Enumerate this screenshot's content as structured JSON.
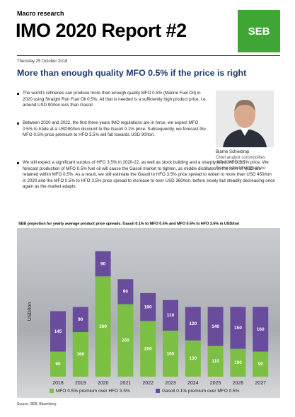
{
  "header": {
    "section": "Macro research",
    "title": "IMO 2020 Report #2",
    "logo": "SEB",
    "date": "Thursday 25 October 2018"
  },
  "headline": "More than enough quality MFO 0.5% if the price is right",
  "bullets": [
    "The world's refineries can produce more than enough quality MFO 0.5% (Marine Fuel Oil) in 2020 using Straight Run Fuel Oil 0.5%. All that is needed is a sufficiently high product price, i.e. around USD 90/ton less than Gasoil.",
    "Between 2020 and 2022, the first three years IMO regulations are in force, we expect MFO 0.5% to trade at a USD90/ton discount to the Gasoil 0.1% price. Subsequently, we forecast the MFO 0.5% price premium to HFO 3.5% will fall towards USD 90/ton.",
    "We still expect a significant surplus of HFO 3.5% in 2020-22, as well as stock building and a sharply lower HFO 3.5% price. We forecast production of MFO 0.5% fuel oil will cause the Gasoil market to tighten, as middle distillates in the form of VGO are retained within MFO 0.5%. As a result, we still estimate the Gasoil to HFO 3.5% price spread to widen to more than USD 450/ton in 2020 and the MFO 0.5% to HFO 3.5% price spread to increase to over USD 360/ton, before slowly but steadily decreasing once again as the market adapts."
  ],
  "contact": {
    "name": "Bjarne Schieldrop",
    "role": "Chief analyst commodities",
    "phone": "(47) 9248 9230",
    "email": "Bjarne.schieldrop@seb.no"
  },
  "chart_data": {
    "type": "stacked_bar",
    "title": "SEB projection for yearly average product price spreads. Gasoil 0.1% to MFO 0.5% and MFO 0.5% to HFO 3.5% in USD/ton",
    "y_label": "USD/ton",
    "categories": [
      "2018",
      "2019",
      "2020",
      "2021",
      "2022",
      "2023",
      "2024",
      "2025",
      "2026",
      "2027"
    ],
    "series": [
      {
        "name": "MFO 0.5% premium over HFO 3.5%",
        "color": "#7cc043",
        "values": [
          90,
          160,
          360,
          260,
          200,
          165,
          130,
          110,
          100,
          90
        ]
      },
      {
        "name": "Gasoil 0.1% premium over MFO 0.5%",
        "color": "#6a4c9c",
        "values": [
          145,
          90,
          90,
          90,
          100,
          110,
          120,
          140,
          150,
          160
        ]
      }
    ],
    "ylim": [
      0,
      460
    ],
    "source": "Source: SEB, Bloomberg"
  }
}
